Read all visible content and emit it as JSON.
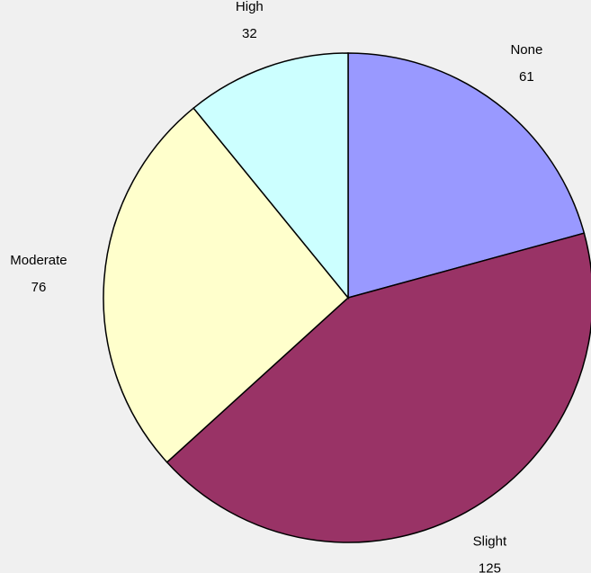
{
  "chart_data": {
    "type": "pie",
    "categories": [
      "None",
      "Slight",
      "Moderate",
      "High"
    ],
    "values": [
      61,
      125,
      76,
      32
    ],
    "colors": [
      "#9999ff",
      "#993366",
      "#ffffcc",
      "#ccffff"
    ]
  }
}
